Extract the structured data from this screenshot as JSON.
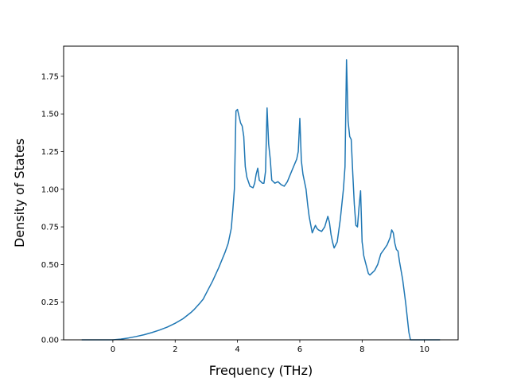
{
  "chart_data": {
    "type": "line",
    "title": "",
    "xlabel": "Frequency (THz)",
    "ylabel": "Density of States",
    "xlim": [
      -1.58,
      11.08
    ],
    "ylim": [
      0,
      1.95
    ],
    "xticks": [
      0,
      2,
      4,
      6,
      8,
      10
    ],
    "xtick_labels": [
      "0",
      "2",
      "4",
      "6",
      "8",
      "10"
    ],
    "yticks": [
      0,
      0.25,
      0.5,
      0.75,
      1.0,
      1.25,
      1.5,
      1.75
    ],
    "ytick_labels": [
      "0.00",
      "0.25",
      "0.50",
      "0.75",
      "1.00",
      "1.25",
      "1.50",
      "1.75"
    ],
    "grid": false,
    "line_color": "#1f77b4",
    "series": [
      {
        "x": [
          -1.0,
          -0.5,
          0.0,
          0.25,
          0.5,
          0.75,
          1.0,
          1.25,
          1.5,
          1.75,
          2.0,
          2.25,
          2.5,
          2.6,
          2.8,
          2.9,
          3.0,
          3.2,
          3.4,
          3.6,
          3.7,
          3.8,
          3.85,
          3.9,
          3.95,
          4.0,
          4.1,
          4.15,
          4.2,
          4.25,
          4.3,
          4.4,
          4.5,
          4.55,
          4.6,
          4.65,
          4.7,
          4.75,
          4.8,
          4.85,
          4.9,
          4.95,
          5.0,
          5.05,
          5.1,
          5.2,
          5.3,
          5.4,
          5.5,
          5.6,
          5.7,
          5.8,
          5.9,
          5.95,
          6.0,
          6.05,
          6.1,
          6.2,
          6.25,
          6.3,
          6.4,
          6.5,
          6.55,
          6.6,
          6.7,
          6.8,
          6.9,
          6.95,
          7.0,
          7.05,
          7.1,
          7.2,
          7.3,
          7.4,
          7.45,
          7.5,
          7.55,
          7.6,
          7.65,
          7.7,
          7.75,
          7.8,
          7.85,
          7.9,
          7.95,
          8.0,
          8.02,
          8.05,
          8.1,
          8.2,
          8.25,
          8.3,
          8.4,
          8.5,
          8.6,
          8.7,
          8.8,
          8.9,
          8.95,
          9.0,
          9.05,
          9.1,
          9.15,
          9.2,
          9.3,
          9.4,
          9.5,
          9.55,
          9.6,
          9.7,
          10.0,
          10.5
        ],
        "values": [
          0.0,
          0.0,
          0.0,
          0.005,
          0.012,
          0.022,
          0.034,
          0.048,
          0.065,
          0.085,
          0.11,
          0.14,
          0.18,
          0.2,
          0.245,
          0.27,
          0.31,
          0.39,
          0.48,
          0.58,
          0.64,
          0.74,
          0.86,
          1.0,
          1.52,
          1.53,
          1.44,
          1.42,
          1.35,
          1.15,
          1.08,
          1.02,
          1.01,
          1.04,
          1.1,
          1.14,
          1.06,
          1.05,
          1.04,
          1.04,
          1.12,
          1.54,
          1.3,
          1.2,
          1.06,
          1.04,
          1.05,
          1.03,
          1.02,
          1.05,
          1.1,
          1.15,
          1.2,
          1.25,
          1.47,
          1.19,
          1.1,
          1.0,
          0.9,
          0.82,
          0.71,
          0.76,
          0.74,
          0.73,
          0.72,
          0.75,
          0.82,
          0.78,
          0.7,
          0.65,
          0.61,
          0.65,
          0.8,
          1.0,
          1.15,
          1.86,
          1.45,
          1.35,
          1.33,
          1.1,
          0.9,
          0.76,
          0.75,
          0.88,
          0.99,
          0.65,
          0.62,
          0.56,
          0.52,
          0.44,
          0.43,
          0.44,
          0.46,
          0.5,
          0.57,
          0.6,
          0.63,
          0.68,
          0.73,
          0.71,
          0.64,
          0.6,
          0.59,
          0.52,
          0.4,
          0.24,
          0.05,
          0.0,
          0.0,
          0.0,
          0.0,
          0.0
        ]
      }
    ]
  }
}
